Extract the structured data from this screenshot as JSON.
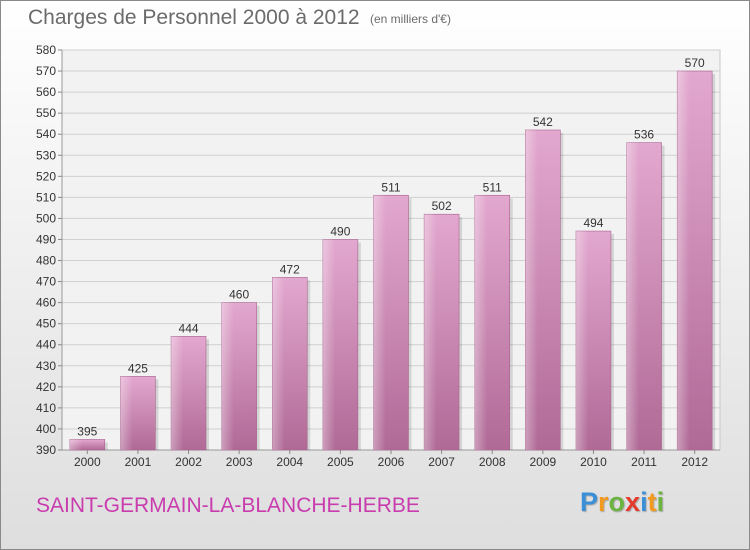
{
  "header": {
    "title": "Charges de Personnel 2000 à 2012",
    "unit": "(en milliers d'€)"
  },
  "footer": {
    "commune": "SAINT-GERMAIN-LA-BLANCHE-HERBE",
    "logo": {
      "letters": [
        {
          "char": "P",
          "color": "#3b8fd6"
        },
        {
          "char": "r",
          "color": "#f39a1e"
        },
        {
          "char": "o",
          "color": "#6cb33f"
        },
        {
          "char": "x",
          "color": "#e53b2c"
        },
        {
          "char": "i",
          "color": "#3b8fd6"
        },
        {
          "char": "t",
          "color": "#f39a1e"
        },
        {
          "char": "i",
          "color": "#6cb33f"
        }
      ]
    }
  },
  "colors": {
    "bar_light": "#e3a8cf",
    "bar_dark": "#b06a96",
    "grid": "#d0d0d0",
    "axis_text": "#333333"
  },
  "chart_data": {
    "type": "bar",
    "title": "Charges de Personnel 2000 à 2012",
    "subtitle": "(en milliers d'€)",
    "xlabel": "",
    "ylabel": "",
    "categories": [
      "2000",
      "2001",
      "2002",
      "2003",
      "2004",
      "2005",
      "2006",
      "2007",
      "2008",
      "2009",
      "2010",
      "2011",
      "2012"
    ],
    "values": [
      395,
      425,
      444,
      460,
      472,
      490,
      511,
      502,
      511,
      542,
      494,
      536,
      570
    ],
    "ylim": [
      390,
      580
    ],
    "ytick_step": 10,
    "grid": true,
    "legend": "none"
  }
}
